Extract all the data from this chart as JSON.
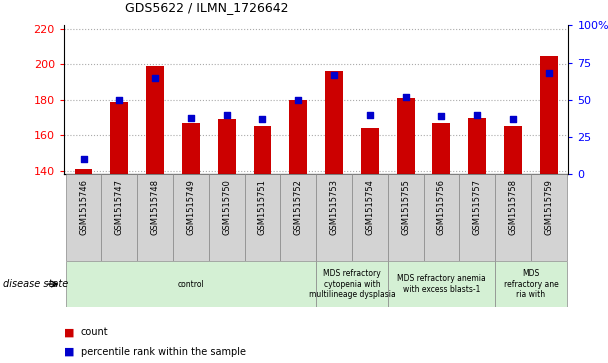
{
  "title": "GDS5622 / ILMN_1726642",
  "samples": [
    "GSM1515746",
    "GSM1515747",
    "GSM1515748",
    "GSM1515749",
    "GSM1515750",
    "GSM1515751",
    "GSM1515752",
    "GSM1515753",
    "GSM1515754",
    "GSM1515755",
    "GSM1515756",
    "GSM1515757",
    "GSM1515758",
    "GSM1515759"
  ],
  "counts": [
    141,
    179,
    199,
    167,
    169,
    165,
    180,
    196,
    164,
    181,
    167,
    170,
    165,
    205
  ],
  "percentile_ranks": [
    10,
    50,
    65,
    38,
    40,
    37,
    50,
    67,
    40,
    52,
    39,
    40,
    37,
    68
  ],
  "ylim_left": [
    138,
    222
  ],
  "ylim_right": [
    0,
    100
  ],
  "yticks_left": [
    140,
    160,
    180,
    200,
    220
  ],
  "yticks_right": [
    0,
    25,
    50,
    75,
    100
  ],
  "yticklabels_right": [
    "0",
    "25",
    "50",
    "75",
    "100%"
  ],
  "bar_color": "#cc0000",
  "dot_color": "#0000cc",
  "bar_bottom": 138,
  "group_defs": [
    [
      0,
      6,
      "control"
    ],
    [
      7,
      8,
      "MDS refractory\ncytopenia with\nmultilineage dysplasia"
    ],
    [
      9,
      11,
      "MDS refractory anemia\nwith excess blasts-1"
    ],
    [
      12,
      13,
      "MDS\nrefractory ane\nria with"
    ]
  ],
  "legend_count_label": "count",
  "legend_pct_label": "percentile rank within the sample",
  "disease_state_label": "disease state",
  "bg_color": "#ffffff",
  "label_box_color": "#d3d3d3",
  "disease_box_color": "#d4f0d4"
}
